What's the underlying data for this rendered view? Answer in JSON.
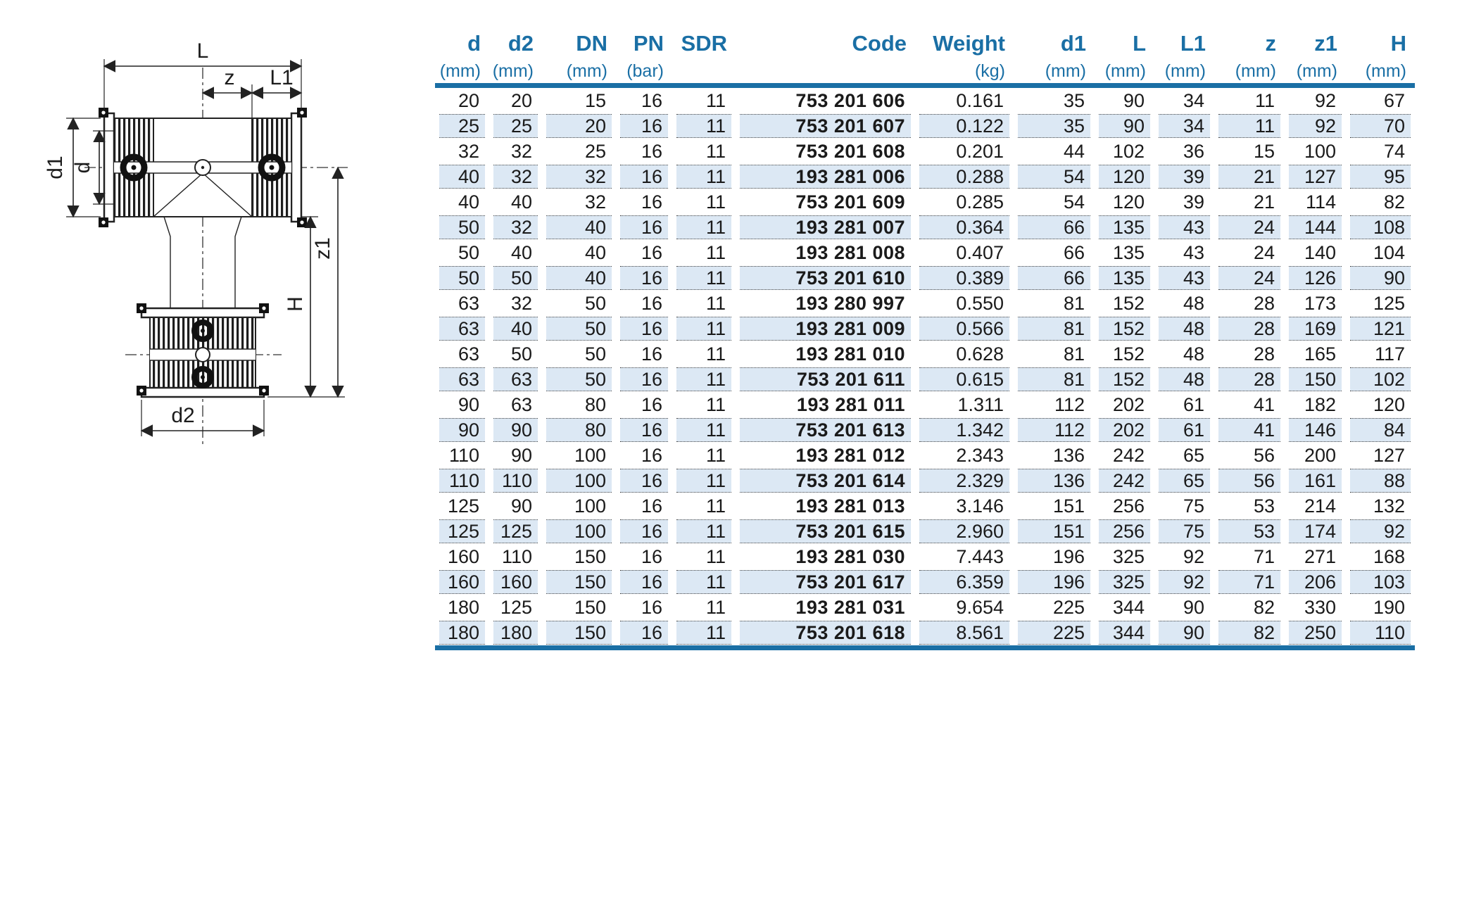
{
  "drawing": {
    "labels": {
      "L": "L",
      "z": "z",
      "L1": "L1",
      "d1": "d1",
      "d": "d",
      "z1": "z1",
      "H": "H",
      "d2": "d2"
    }
  },
  "table": {
    "accent_color": "#1a6fa5",
    "row_shade_color": "#dce8f4",
    "columns": [
      {
        "key": "d",
        "label": "d",
        "unit": "(mm)"
      },
      {
        "key": "d2",
        "label": "d2",
        "unit": "(mm)"
      },
      {
        "key": "DN",
        "label": "DN",
        "unit": "(mm)"
      },
      {
        "key": "PN",
        "label": "PN",
        "unit": "(bar)"
      },
      {
        "key": "SDR",
        "label": "SDR",
        "unit": ""
      },
      {
        "key": "code",
        "label": "Code",
        "unit": ""
      },
      {
        "key": "weight",
        "label": "Weight",
        "unit": "(kg)"
      },
      {
        "key": "d1",
        "label": "d1",
        "unit": "(mm)"
      },
      {
        "key": "L",
        "label": "L",
        "unit": "(mm)"
      },
      {
        "key": "L1",
        "label": "L1",
        "unit": "(mm)"
      },
      {
        "key": "z",
        "label": "z",
        "unit": "(mm)"
      },
      {
        "key": "z1",
        "label": "z1",
        "unit": "(mm)"
      },
      {
        "key": "H",
        "label": "H",
        "unit": "(mm)"
      }
    ],
    "rows": [
      [
        "20",
        "20",
        "15",
        "16",
        "11",
        "753 201 606",
        "0.161",
        "35",
        "90",
        "34",
        "11",
        "92",
        "67"
      ],
      [
        "25",
        "25",
        "20",
        "16",
        "11",
        "753 201 607",
        "0.122",
        "35",
        "90",
        "34",
        "11",
        "92",
        "70"
      ],
      [
        "32",
        "32",
        "25",
        "16",
        "11",
        "753 201 608",
        "0.201",
        "44",
        "102",
        "36",
        "15",
        "100",
        "74"
      ],
      [
        "40",
        "32",
        "32",
        "16",
        "11",
        "193 281 006",
        "0.288",
        "54",
        "120",
        "39",
        "21",
        "127",
        "95"
      ],
      [
        "40",
        "40",
        "32",
        "16",
        "11",
        "753 201 609",
        "0.285",
        "54",
        "120",
        "39",
        "21",
        "114",
        "82"
      ],
      [
        "50",
        "32",
        "40",
        "16",
        "11",
        "193 281 007",
        "0.364",
        "66",
        "135",
        "43",
        "24",
        "144",
        "108"
      ],
      [
        "50",
        "40",
        "40",
        "16",
        "11",
        "193 281 008",
        "0.407",
        "66",
        "135",
        "43",
        "24",
        "140",
        "104"
      ],
      [
        "50",
        "50",
        "40",
        "16",
        "11",
        "753 201 610",
        "0.389",
        "66",
        "135",
        "43",
        "24",
        "126",
        "90"
      ],
      [
        "63",
        "32",
        "50",
        "16",
        "11",
        "193 280 997",
        "0.550",
        "81",
        "152",
        "48",
        "28",
        "173",
        "125"
      ],
      [
        "63",
        "40",
        "50",
        "16",
        "11",
        "193 281 009",
        "0.566",
        "81",
        "152",
        "48",
        "28",
        "169",
        "121"
      ],
      [
        "63",
        "50",
        "50",
        "16",
        "11",
        "193 281 010",
        "0.628",
        "81",
        "152",
        "48",
        "28",
        "165",
        "117"
      ],
      [
        "63",
        "63",
        "50",
        "16",
        "11",
        "753 201 611",
        "0.615",
        "81",
        "152",
        "48",
        "28",
        "150",
        "102"
      ],
      [
        "90",
        "63",
        "80",
        "16",
        "11",
        "193 281 011",
        "1.311",
        "112",
        "202",
        "61",
        "41",
        "182",
        "120"
      ],
      [
        "90",
        "90",
        "80",
        "16",
        "11",
        "753 201 613",
        "1.342",
        "112",
        "202",
        "61",
        "41",
        "146",
        "84"
      ],
      [
        "110",
        "90",
        "100",
        "16",
        "11",
        "193 281 012",
        "2.343",
        "136",
        "242",
        "65",
        "56",
        "200",
        "127"
      ],
      [
        "110",
        "110",
        "100",
        "16",
        "11",
        "753 201 614",
        "2.329",
        "136",
        "242",
        "65",
        "56",
        "161",
        "88"
      ],
      [
        "125",
        "90",
        "100",
        "16",
        "11",
        "193 281 013",
        "3.146",
        "151",
        "256",
        "75",
        "53",
        "214",
        "132"
      ],
      [
        "125",
        "125",
        "100",
        "16",
        "11",
        "753 201 615",
        "2.960",
        "151",
        "256",
        "75",
        "53",
        "174",
        "92"
      ],
      [
        "160",
        "110",
        "150",
        "16",
        "11",
        "193 281 030",
        "7.443",
        "196",
        "325",
        "92",
        "71",
        "271",
        "168"
      ],
      [
        "160",
        "160",
        "150",
        "16",
        "11",
        "753 201 617",
        "6.359",
        "196",
        "325",
        "92",
        "71",
        "206",
        "103"
      ],
      [
        "180",
        "125",
        "150",
        "16",
        "11",
        "193 281 031",
        "9.654",
        "225",
        "344",
        "90",
        "82",
        "330",
        "190"
      ],
      [
        "180",
        "180",
        "150",
        "16",
        "11",
        "753 201 618",
        "8.561",
        "225",
        "344",
        "90",
        "82",
        "250",
        "110"
      ]
    ]
  }
}
